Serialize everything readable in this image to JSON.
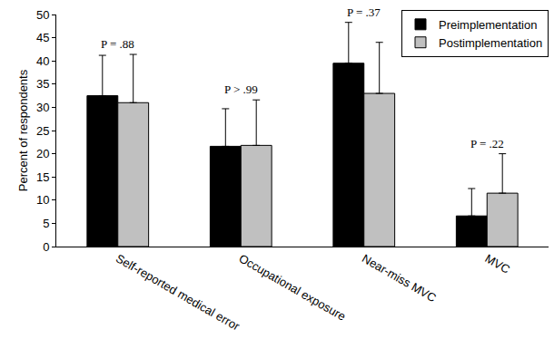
{
  "chart_data": {
    "type": "bar",
    "y_label": "Percent of respondents",
    "categories": [
      "Self-reported medical error",
      "Occupational exposure",
      "Near-miss MVC",
      "MVC"
    ],
    "series": [
      {
        "name": "Preimplementation",
        "color": "#000000",
        "values": [
          32.5,
          21.6,
          39.5,
          6.6
        ],
        "errors": [
          8.7,
          8.1,
          8.8,
          5.9
        ]
      },
      {
        "name": "Postimplementation",
        "color": "#c0c0c0",
        "values": [
          31.0,
          21.8,
          33.0,
          11.5
        ],
        "errors": [
          10.4,
          9.8,
          11.0,
          8.5
        ]
      }
    ],
    "annotations": [
      {
        "category": "Self-reported medical error",
        "text": "P = .88"
      },
      {
        "category": "Occupational exposure",
        "text": "P > .99"
      },
      {
        "category": "Near-miss MVC",
        "text": "P = .37"
      },
      {
        "category": "MVC",
        "text": "P = .22"
      }
    ],
    "ylim": [
      0,
      50
    ],
    "yticks": [
      0,
      5,
      10,
      15,
      20,
      25,
      30,
      35,
      40,
      45,
      50
    ],
    "grid": false,
    "legend": "top right"
  }
}
